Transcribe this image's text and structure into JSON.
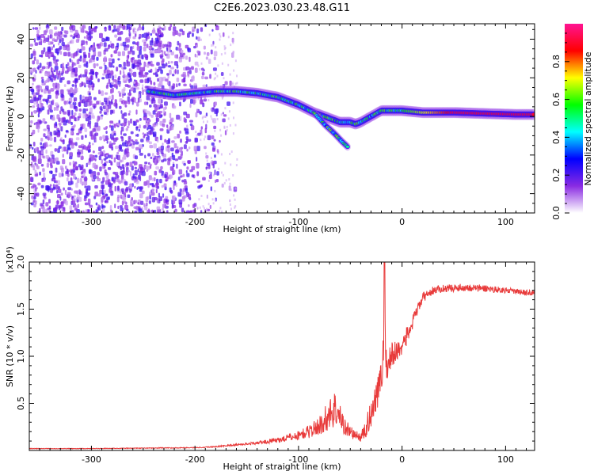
{
  "title": "C2E6.2023.030.23.48.G11",
  "chart_data": [
    {
      "type": "heatmap",
      "xlabel": "Height of straight line (km)",
      "ylabel": "Frequency (Hz)",
      "xlim": [
        -360,
        128
      ],
      "ylim": [
        -50,
        48
      ],
      "x_ticks": [
        -300,
        -200,
        -100,
        0,
        100
      ],
      "y_ticks": [
        -40,
        -20,
        0,
        20,
        40
      ],
      "colorbar": {
        "label": "Normalized spectral amplitude",
        "range": [
          0,
          1
        ],
        "ticks": [
          0.0,
          0.2,
          0.4,
          0.6,
          0.8
        ],
        "colors": [
          "#ffffff",
          "#8a2be2",
          "#0000ff",
          "#00ffff",
          "#00ff00",
          "#ffff00",
          "#ff0000",
          "#ff1493"
        ]
      },
      "ridge": {
        "x": [
          -245,
          -220,
          -200,
          -180,
          -160,
          -140,
          -120,
          -100,
          -85,
          -70,
          -60,
          -50,
          -45,
          -40,
          -30,
          -20,
          -10,
          0,
          20,
          50,
          80,
          110,
          128
        ],
        "freq": [
          13,
          11,
          12,
          13,
          13,
          12,
          10,
          6,
          2,
          -1,
          -3,
          -3,
          -4,
          -3,
          0,
          3,
          3,
          3,
          2,
          2,
          1.5,
          1,
          1
        ]
      },
      "branch": {
        "x": [
          -85,
          -75,
          -65,
          -58,
          -52
        ],
        "freq": [
          2,
          -4,
          -9,
          -13,
          -16
        ]
      }
    },
    {
      "type": "line",
      "xlabel": "Height of straight line (km)",
      "ylabel": "SNR (10 * v/v)",
      "y_multiplier": "(x10⁴)",
      "xlim": [
        -360,
        128
      ],
      "ylim": [
        0,
        2.0
      ],
      "x_ticks": [
        -300,
        -200,
        -100,
        0,
        100
      ],
      "y_ticks": [
        0.5,
        1.0,
        1.5,
        2.0
      ],
      "y_tick_labels": [
        "0.5",
        "1.0",
        "1.5",
        "2.0"
      ],
      "color": "#e83a3a",
      "x": [
        -360,
        -300,
        -250,
        -200,
        -180,
        -160,
        -140,
        -120,
        -100,
        -90,
        -80,
        -75,
        -70,
        -65,
        -60,
        -55,
        -50,
        -45,
        -40,
        -35,
        -30,
        -25,
        -20,
        -17,
        -15,
        -10,
        -5,
        0,
        5,
        10,
        15,
        20,
        30,
        40,
        60,
        80,
        100,
        115,
        128
      ],
      "y": [
        0.02,
        0.02,
        0.025,
        0.03,
        0.04,
        0.06,
        0.08,
        0.11,
        0.16,
        0.2,
        0.26,
        0.32,
        0.38,
        0.45,
        0.35,
        0.25,
        0.2,
        0.16,
        0.14,
        0.22,
        0.4,
        0.6,
        0.75,
        1.3,
        0.9,
        1.0,
        1.05,
        1.12,
        1.22,
        1.35,
        1.5,
        1.62,
        1.7,
        1.72,
        1.73,
        1.72,
        1.7,
        1.68,
        1.67
      ],
      "noise_amplitude": [
        0.003,
        0.003,
        0.004,
        0.005,
        0.007,
        0.01,
        0.015,
        0.03,
        0.05,
        0.07,
        0.1,
        0.14,
        0.18,
        0.2,
        0.14,
        0.1,
        0.07,
        0.05,
        0.05,
        0.1,
        0.16,
        0.18,
        0.2,
        0.3,
        0.18,
        0.16,
        0.12,
        0.1,
        0.1,
        0.08,
        0.06,
        0.05,
        0.04,
        0.04,
        0.04,
        0.04,
        0.03,
        0.03,
        0.03
      ]
    }
  ]
}
